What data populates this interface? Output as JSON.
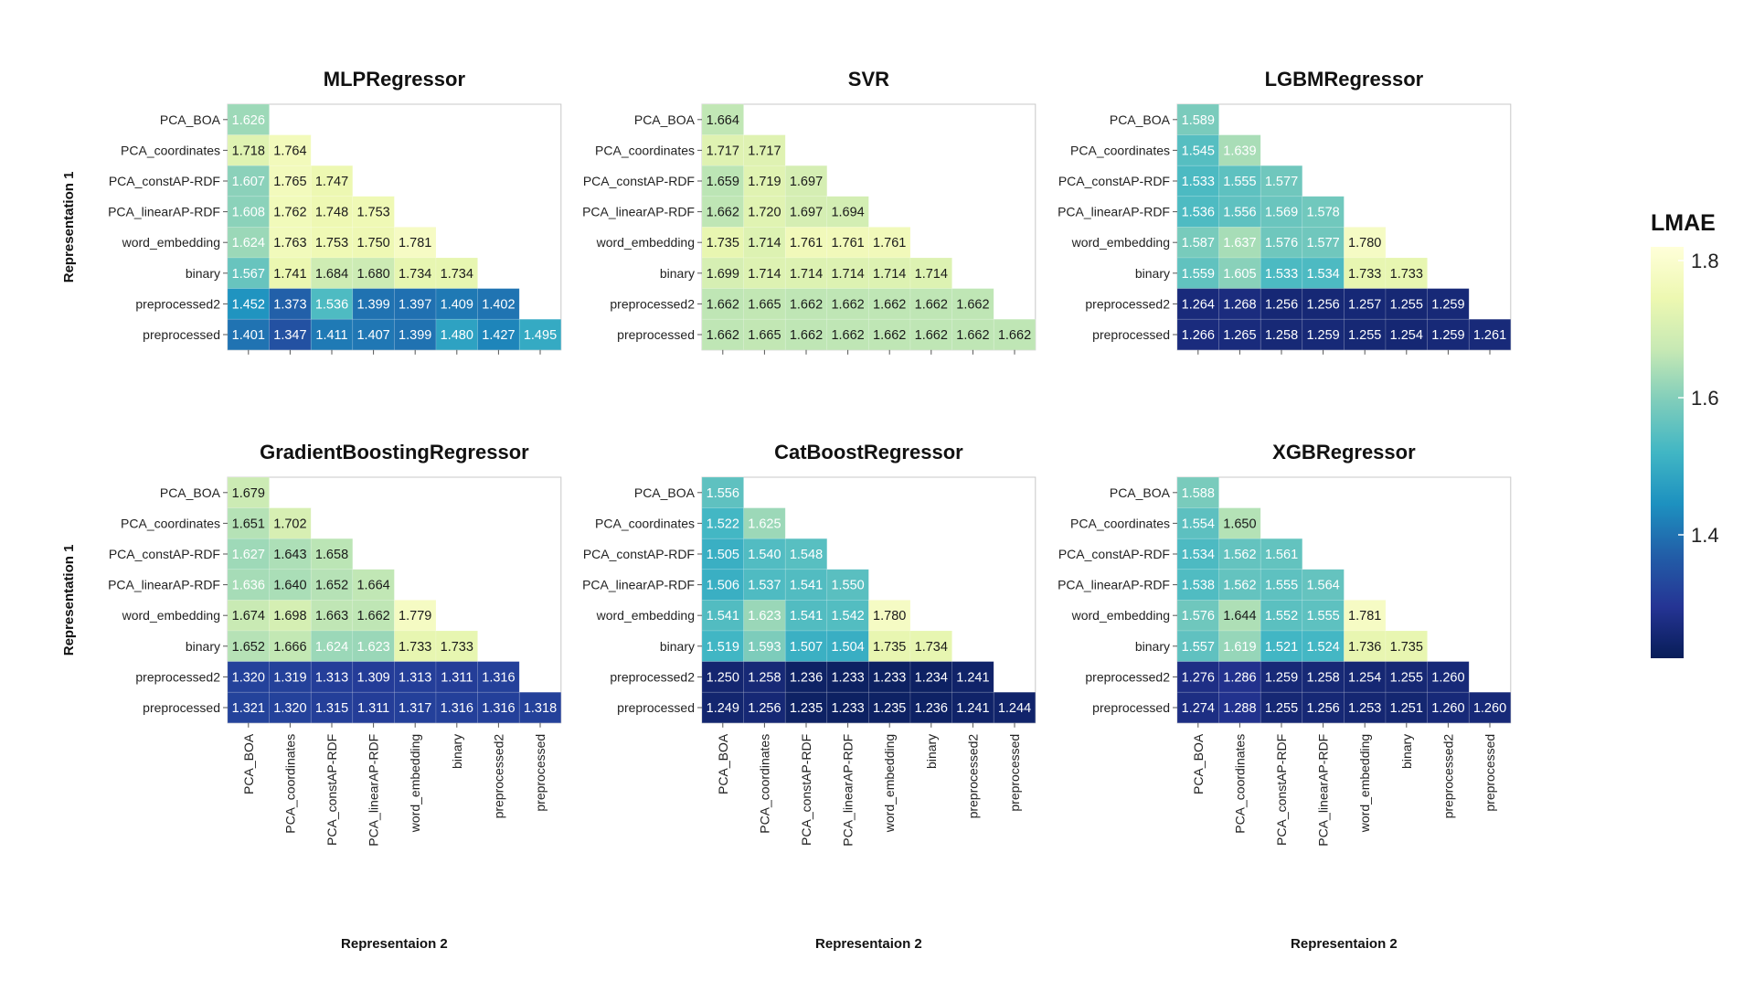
{
  "chart_data": {
    "type": "heatmap",
    "representations": [
      "PCA_BOA",
      "PCA_coordinates",
      "PCA_constAP-RDF",
      "PCA_linearAP-RDF",
      "word_embedding",
      "binary",
      "preprocessed2",
      "preprocessed"
    ],
    "ylabel": "Representation 1",
    "xlabel": "Representaion 2",
    "legend": {
      "title": "LMAE",
      "ticks": [
        "1.8",
        "1.6",
        "1.4"
      ],
      "tick_values": [
        1.8,
        1.6,
        1.4
      ],
      "range": [
        1.22,
        1.82
      ],
      "position": "right",
      "colorscale": [
        "#ffffd9",
        "#edf8b1",
        "#c7e9b4",
        "#7fcdbb",
        "#41b6c4",
        "#1d91c0",
        "#225ea8",
        "#253494",
        "#081d58"
      ]
    },
    "panels": [
      {
        "title": "MLPRegressor",
        "rows": [
          [
            "1.626"
          ],
          [
            "1.718",
            "1.764"
          ],
          [
            "1.607",
            "1.765",
            "1.747"
          ],
          [
            "1.608",
            "1.762",
            "1.748",
            "1.753"
          ],
          [
            "1.624",
            "1.763",
            "1.753",
            "1.750",
            "1.781"
          ],
          [
            "1.567",
            "1.741",
            "1.684",
            "1.680",
            "1.734",
            "1.734"
          ],
          [
            "1.452",
            "1.373",
            "1.536",
            "1.399",
            "1.397",
            "1.409",
            "1.402"
          ],
          [
            "1.401",
            "1.347",
            "1.411",
            "1.407",
            "1.399",
            "1.480",
            "1.427",
            "1.495"
          ]
        ]
      },
      {
        "title": "SVR",
        "rows": [
          [
            "1.664"
          ],
          [
            "1.717",
            "1.717"
          ],
          [
            "1.659",
            "1.719",
            "1.697"
          ],
          [
            "1.662",
            "1.720",
            "1.697",
            "1.694"
          ],
          [
            "1.735",
            "1.714",
            "1.761",
            "1.761",
            "1.761"
          ],
          [
            "1.699",
            "1.714",
            "1.714",
            "1.714",
            "1.714",
            "1.714"
          ],
          [
            "1.662",
            "1.665",
            "1.662",
            "1.662",
            "1.662",
            "1.662",
            "1.662"
          ],
          [
            "1.662",
            "1.665",
            "1.662",
            "1.662",
            "1.662",
            "1.662",
            "1.662",
            "1.662"
          ]
        ]
      },
      {
        "title": "LGBMRegressor",
        "rows": [
          [
            "1.589"
          ],
          [
            "1.545",
            "1.639"
          ],
          [
            "1.533",
            "1.555",
            "1.577"
          ],
          [
            "1.536",
            "1.556",
            "1.569",
            "1.578"
          ],
          [
            "1.587",
            "1.637",
            "1.576",
            "1.577",
            "1.780"
          ],
          [
            "1.559",
            "1.605",
            "1.533",
            "1.534",
            "1.733",
            "1.733"
          ],
          [
            "1.264",
            "1.268",
            "1.256",
            "1.256",
            "1.257",
            "1.255",
            "1.259"
          ],
          [
            "1.266",
            "1.265",
            "1.258",
            "1.259",
            "1.255",
            "1.254",
            "1.259",
            "1.261"
          ]
        ]
      },
      {
        "title": "GradientBoostingRegressor",
        "rows": [
          [
            "1.679"
          ],
          [
            "1.651",
            "1.702"
          ],
          [
            "1.627",
            "1.643",
            "1.658"
          ],
          [
            "1.636",
            "1.640",
            "1.652",
            "1.664"
          ],
          [
            "1.674",
            "1.698",
            "1.663",
            "1.662",
            "1.779"
          ],
          [
            "1.652",
            "1.666",
            "1.624",
            "1.623",
            "1.733",
            "1.733"
          ],
          [
            "1.320",
            "1.319",
            "1.313",
            "1.309",
            "1.313",
            "1.311",
            "1.316"
          ],
          [
            "1.321",
            "1.320",
            "1.315",
            "1.311",
            "1.317",
            "1.316",
            "1.316",
            "1.318"
          ]
        ]
      },
      {
        "title": "CatBoostRegressor",
        "rows": [
          [
            "1.556"
          ],
          [
            "1.522",
            "1.625"
          ],
          [
            "1.505",
            "1.540",
            "1.548"
          ],
          [
            "1.506",
            "1.537",
            "1.541",
            "1.550"
          ],
          [
            "1.541",
            "1.623",
            "1.541",
            "1.542",
            "1.780"
          ],
          [
            "1.519",
            "1.593",
            "1.507",
            "1.504",
            "1.735",
            "1.734"
          ],
          [
            "1.250",
            "1.258",
            "1.236",
            "1.233",
            "1.233",
            "1.234",
            "1.241"
          ],
          [
            "1.249",
            "1.256",
            "1.235",
            "1.233",
            "1.235",
            "1.236",
            "1.241",
            "1.244"
          ]
        ]
      },
      {
        "title": "XGBRegressor",
        "rows": [
          [
            "1.588"
          ],
          [
            "1.554",
            "1.650"
          ],
          [
            "1.534",
            "1.562",
            "1.561"
          ],
          [
            "1.538",
            "1.562",
            "1.555",
            "1.564"
          ],
          [
            "1.576",
            "1.644",
            "1.552",
            "1.555",
            "1.781"
          ],
          [
            "1.557",
            "1.619",
            "1.521",
            "1.524",
            "1.736",
            "1.735"
          ],
          [
            "1.276",
            "1.286",
            "1.259",
            "1.258",
            "1.254",
            "1.255",
            "1.260"
          ],
          [
            "1.274",
            "1.288",
            "1.255",
            "1.256",
            "1.253",
            "1.251",
            "1.260",
            "1.260"
          ]
        ]
      }
    ]
  }
}
